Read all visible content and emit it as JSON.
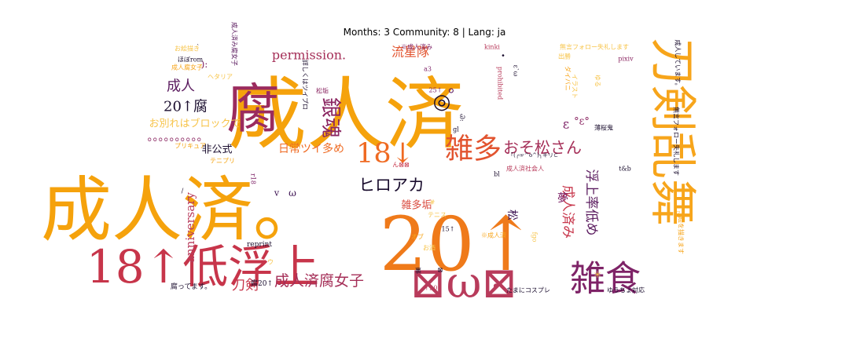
{
  "figure": {
    "title": "Months: 3 Community: 8 | Lang: ja"
  },
  "chart_data": {
    "type": "wordcloud",
    "title": "Months: 3 Community: 8 | Lang: ja",
    "colormap": "inferno",
    "words": [
      {
        "text": "成人済",
        "weight": 100,
        "color": "#f5a20c"
      },
      {
        "text": "成人済。",
        "weight": 90,
        "color": "#f5a20c"
      },
      {
        "text": "20↑",
        "weight": 95,
        "color": "#ef7a1a"
      },
      {
        "text": "腐",
        "weight": 68,
        "color": "#9b2b5e"
      },
      {
        "text": "刀剣乱舞",
        "weight": 60,
        "color": "#f7a51b"
      },
      {
        "text": "18↑低浮上",
        "weight": 58,
        "color": "#c7354a"
      },
      {
        "text": "⊠ω⊠",
        "weight": 55,
        "color": "#b83b5b"
      },
      {
        "text": "雑食",
        "weight": 45,
        "color": "#7e2367"
      },
      {
        "text": "雑多",
        "weight": 36,
        "color": "#e2542f"
      },
      {
        "text": "18↓",
        "weight": 35,
        "color": "#ef6a22"
      },
      {
        "text": "銀魂",
        "weight": 26,
        "color": "#8a2561"
      },
      {
        "text": "ヒロアカ",
        "weight": 21,
        "color": "#1a0d2e"
      },
      {
        "text": "おそ松さん",
        "weight": 20,
        "color": "#a52f58"
      },
      {
        "text": "成人済腐女子",
        "weight": 19,
        "color": "#a52f58"
      },
      {
        "text": "成人",
        "weight": 18,
        "color": "#5a1a5e"
      },
      {
        "text": "20↑腐",
        "weight": 18,
        "color": "#1a0d2e"
      },
      {
        "text": "permission.",
        "weight": 16,
        "color": "#a52f58"
      },
      {
        "text": "流星隊",
        "weight": 16,
        "color": "#e2542f"
      },
      {
        "text": "浮上率低め",
        "weight": 17,
        "color": "#5a1a5e"
      },
      {
        "text": "成人済み",
        "weight": 17,
        "color": "#c7354a"
      },
      {
        "text": "刀剣",
        "weight": 17,
        "color": "#c7354a"
      },
      {
        "text": "日常ツイ多め",
        "weight": 14,
        "color": "#ef6a22"
      },
      {
        "text": "お別れはブロックで",
        "weight": 13,
        "color": "#f7c44a"
      },
      {
        "text": "anniversary",
        "weight": 15,
        "color": "#b83b5b"
      },
      {
        "text": "雑多垢",
        "weight": 13,
        "color": "#d94a3e"
      },
      {
        "text": "非公式",
        "weight": 13,
        "color": "#1a0d2e"
      },
      {
        "text": "夢",
        "weight": 14,
        "color": "#7e2367"
      },
      {
        "text": "松",
        "weight": 14,
        "color": "#3a0f50"
      },
      {
        "text": "◎",
        "weight": 26,
        "color": "#1a0d2e"
      },
      {
        "text": "。",
        "weight": 20,
        "color": "#5a1a5e"
      },
      {
        "text": "。。。。。。。。。。",
        "weight": 14,
        "color": "#8a2561"
      },
      {
        "text": "°ε°",
        "weight": 13,
        "color": "#8a2561"
      },
      {
        "text": "ε",
        "weight": 16,
        "color": "#7e2367"
      },
      {
        "text": "・",
        "weight": 13,
        "color": "#1a0d2e"
      },
      {
        "text": "ω",
        "weight": 12,
        "color": "#3a0f50"
      },
      {
        "text": "v",
        "weight": 11,
        "color": "#3a0f50"
      },
      {
        "text": "＊",
        "weight": 11,
        "color": "#f7c44a"
      },
      {
        "text": "):",
        "weight": 12,
        "color": "#7e2367"
      },
      {
        "text": "成人済み腐女子",
        "weight": 8,
        "color": "#5a1a5e"
      },
      {
        "text": "腐ってます。",
        "weight": 9,
        "color": "#1a0d2e"
      },
      {
        "text": "腐20↑",
        "weight": 9,
        "color": "#1a0d2e"
      },
      {
        "text": "reprint",
        "weight": 9,
        "color": "#1a0d2e"
      },
      {
        "text": "成人腐女子",
        "weight": 8,
        "color": "#f7a51b"
      },
      {
        "text": "お絵描き",
        "weight": 8,
        "color": "#f7c44a"
      },
      {
        "text": "ほぼrom",
        "weight": 8,
        "color": "#1a0d2e"
      },
      {
        "text": "ヘタリア",
        "weight": 8,
        "color": "#f7c44a"
      },
      {
        "text": "松垢",
        "weight": 8,
        "color": "#8a2561"
      },
      {
        "text": "詳しくはツイプロ",
        "weight": 8,
        "color": "#1a0d2e"
      },
      {
        "text": "※成人済み",
        "weight": 8,
        "color": "#7e2367"
      },
      {
        "text": "a3",
        "weight": 8,
        "color": "#7e2367"
      },
      {
        "text": "25↑",
        "weight": 8,
        "color": "#7e2367"
      },
      {
        "text": "kinki",
        "weight": 8,
        "color": "#b83b5b"
      },
      {
        "text": "出勝",
        "weight": 8,
        "color": "#f7c44a"
      },
      {
        "text": "pixiv",
        "weight": 8,
        "color": "#8a2561"
      },
      {
        "text": "無言フォロー失礼します",
        "weight": 8,
        "color": "#f7c44a"
      },
      {
        "text": "prohibited",
        "weight": 8,
        "color": "#b83b5b"
      },
      {
        "text": "ε`ω",
        "weight": 8,
        "color": "#1a0d2e"
      },
      {
        "text": "Ꮚ:",
        "weight": 8,
        "color": "#1a0d2e"
      },
      {
        "text": "gl",
        "weight": 8,
        "color": "#1a0d2e"
      },
      {
        "text": "ダイバニ",
        "weight": 8,
        "color": "#f7a51b"
      },
      {
        "text": "イラスト",
        "weight": 8,
        "color": "#f7c44a"
      },
      {
        "text": "ゆる",
        "weight": 8,
        "color": "#f7c44a"
      },
      {
        "text": "成人しています。",
        "weight": 8,
        "color": "#1a0d2e"
      },
      {
        "text": "薄桜鬼",
        "weight": 8,
        "color": "#1a0d2e"
      },
      {
        "text": "プリキュア",
        "weight": 8,
        "color": "#f5a20c"
      },
      {
        "text": "テニプリ",
        "weight": 8,
        "color": "#f5a20c"
      },
      {
        "text": "20↑",
        "weight": 8,
        "color": "#f7a51b"
      },
      {
        "text": "r18",
        "weight": 8,
        "color": "#7e2367"
      },
      {
        "text": "ん⊠⊠",
        "weight": 8,
        "color": "#c7354a"
      },
      {
        "text": "bl",
        "weight": 8,
        "color": "#1a0d2e"
      },
      {
        "text": "成人済社会人",
        "weight": 8,
        "color": "#b83b5b"
      },
      {
        "text": "t&b",
        "weight": 8,
        "color": "#1a0d2e"
      },
      {
        "text": "無言フォロー失礼します",
        "weight": 8,
        "color": "#1a0d2e"
      },
      {
        "text": "「(╭☞^o^)╮キリ⊂",
        "weight": 7,
        "color": "#1a0d2e"
      },
      {
        "text": "#",
        "weight": 8,
        "color": "#f7c44a"
      },
      {
        "text": "テニス",
        "weight": 8,
        "color": "#f7c44a"
      },
      {
        "text": "15↑",
        "weight": 8,
        "color": "#1a0d2e"
      },
      {
        "text": "※成人済",
        "weight": 8,
        "color": "#f7a51b"
      },
      {
        "text": "オブ",
        "weight": 8,
        "color": "#f7a51b"
      },
      {
        "text": "お酒",
        "weight": 8,
        "color": "#f7c44a"
      },
      {
        "text": "⊠",
        "weight": 8,
        "color": "#1a0d2e"
      },
      {
        "text": "ウ",
        "weight": 8,
        "color": "#f7c44a"
      },
      {
        "text": "裏",
        "weight": 8,
        "color": "#1a0d2e"
      },
      {
        "text": "↑20",
        "weight": 8,
        "color": "#b83b5b"
      },
      {
        "text": "●",
        "weight": 8,
        "color": "#b83b5b"
      },
      {
        "text": "たまにコスプレ",
        "weight": 8,
        "color": "#1a0d2e"
      },
      {
        "text": "ゆうちょ対応",
        "weight": 8,
        "color": "#1a0d2e"
      },
      {
        "text": "絵を描きます",
        "weight": 8,
        "color": "#f7a51b"
      },
      {
        "text": "▽",
        "weight": 8,
        "color": "#f7a51b"
      },
      {
        "text": "fgo",
        "weight": 8,
        "color": "#f7c44a"
      },
      {
        "text": "/",
        "weight": 8,
        "color": "#1a0d2e"
      },
      {
        "text": "`",
        "weight": 8,
        "color": "#1a0d2e"
      }
    ]
  }
}
